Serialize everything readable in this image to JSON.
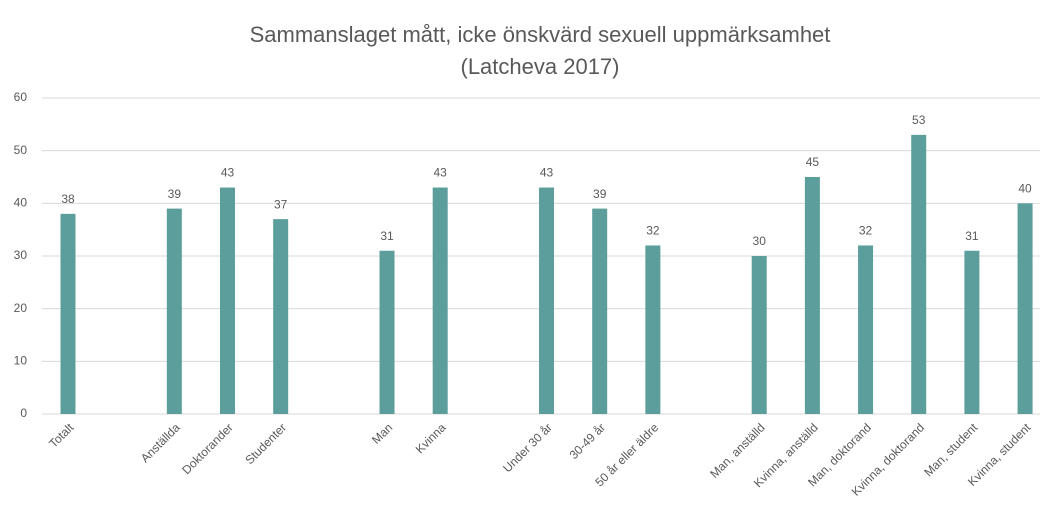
{
  "chart_data": {
    "type": "bar",
    "title": [
      "Sammanslaget mått, icke önskvärd sexuell uppmärksamhet",
      "(Latcheva 2017)"
    ],
    "categories": [
      "Totalt",
      null,
      "Anställda",
      "Doktorander",
      "Studenter",
      null,
      "Man",
      "Kvinna",
      null,
      "Under 30 år",
      "30-49 år",
      "50 år eller äldre",
      null,
      "Man, anställd",
      "Kvinna, anställd",
      "Man, doktorand",
      "Kvinna, doktorand",
      "Man, student",
      "Kvinna, student"
    ],
    "values": [
      38,
      null,
      39,
      43,
      37,
      null,
      31,
      43,
      null,
      43,
      39,
      32,
      null,
      30,
      45,
      32,
      53,
      31,
      40
    ],
    "color": "#5b9e9b",
    "ylim": [
      0,
      60
    ],
    "yticks": [
      0,
      10,
      20,
      30,
      40,
      50,
      60
    ],
    "grid": true
  }
}
